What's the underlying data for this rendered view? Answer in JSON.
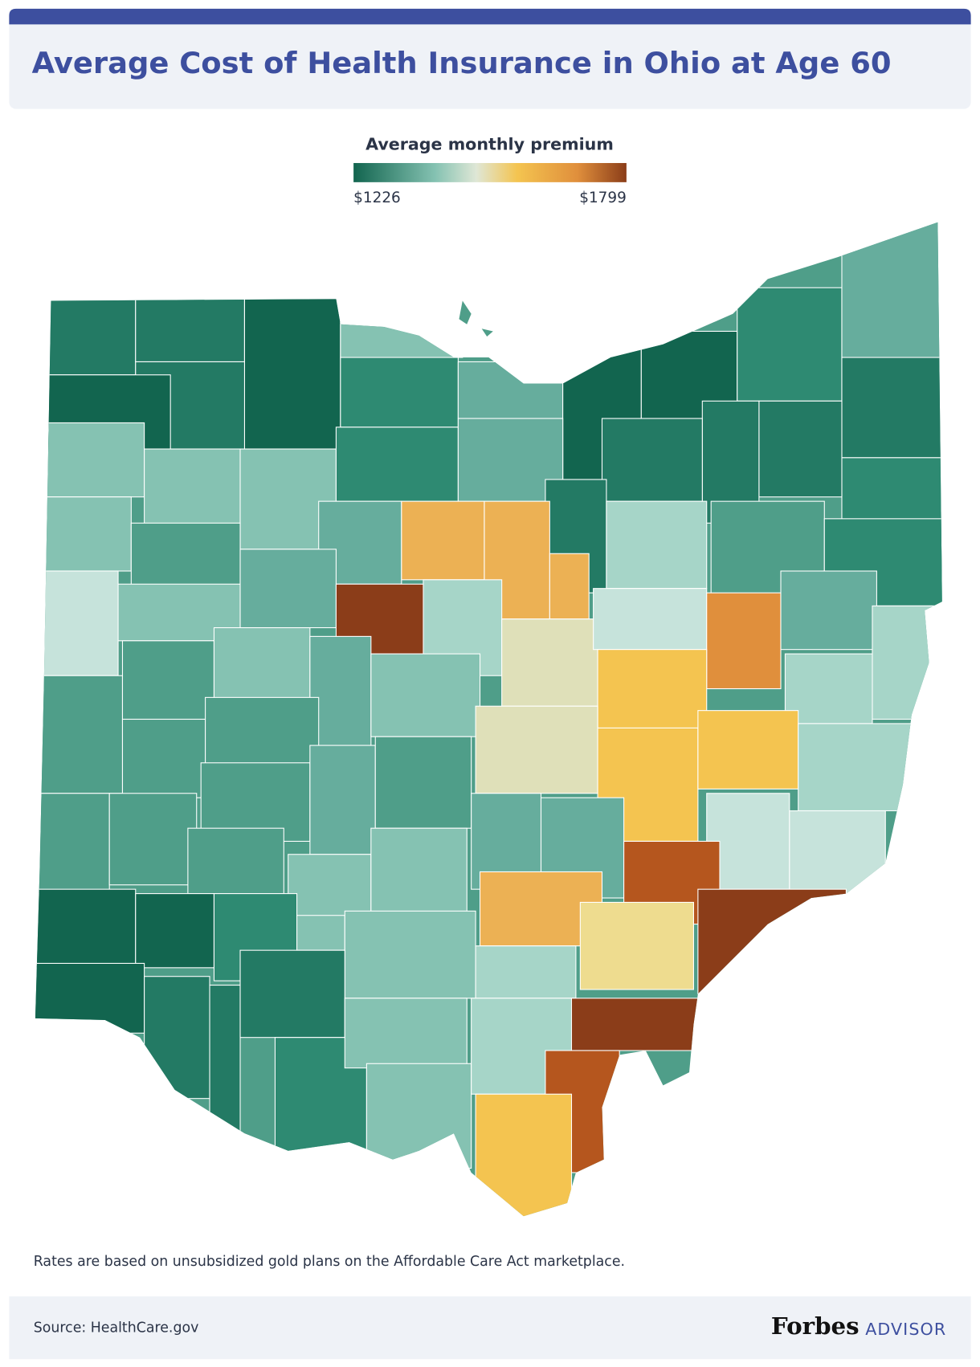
{
  "header": {
    "title": "Average Cost of Health Insurance in Ohio at Age 60"
  },
  "legend": {
    "title": "Average monthly premium",
    "min_label": "$1226",
    "max_label": "$1799"
  },
  "note": "Rates are based on unsubsidized gold plans on the Affordable Care Act marketplace.",
  "footer": {
    "source": "Source: HealthCare.gov",
    "brand": "Forbes",
    "brand_sub": "ADVISOR"
  }
}
